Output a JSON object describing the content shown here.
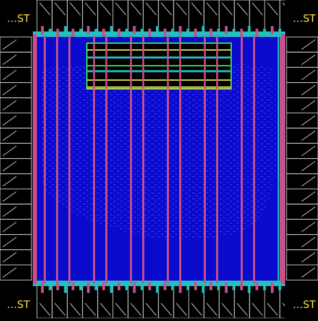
{
  "corner_labels": {
    "top_left": "…ST",
    "top_right": "…ST",
    "bottom_left": "…ST",
    "bottom_right": "…ST"
  },
  "colors": {
    "background": "#000000",
    "pad_stroke": "#c8c8c8",
    "core_fill": "#0a0acc",
    "cell_texture": "#2a2af0",
    "power_stripe": "#c8508a",
    "ring_cyan": "#22c0c0",
    "macro_outline_green": "#33dd55",
    "macro_outline_yellow": "#d8d84a",
    "label_text": "#ffe23a"
  },
  "icons": {
    "io_pad": "io-pad-cell",
    "power_stripe": "power-stripe",
    "macro_block": "macro-block"
  }
}
